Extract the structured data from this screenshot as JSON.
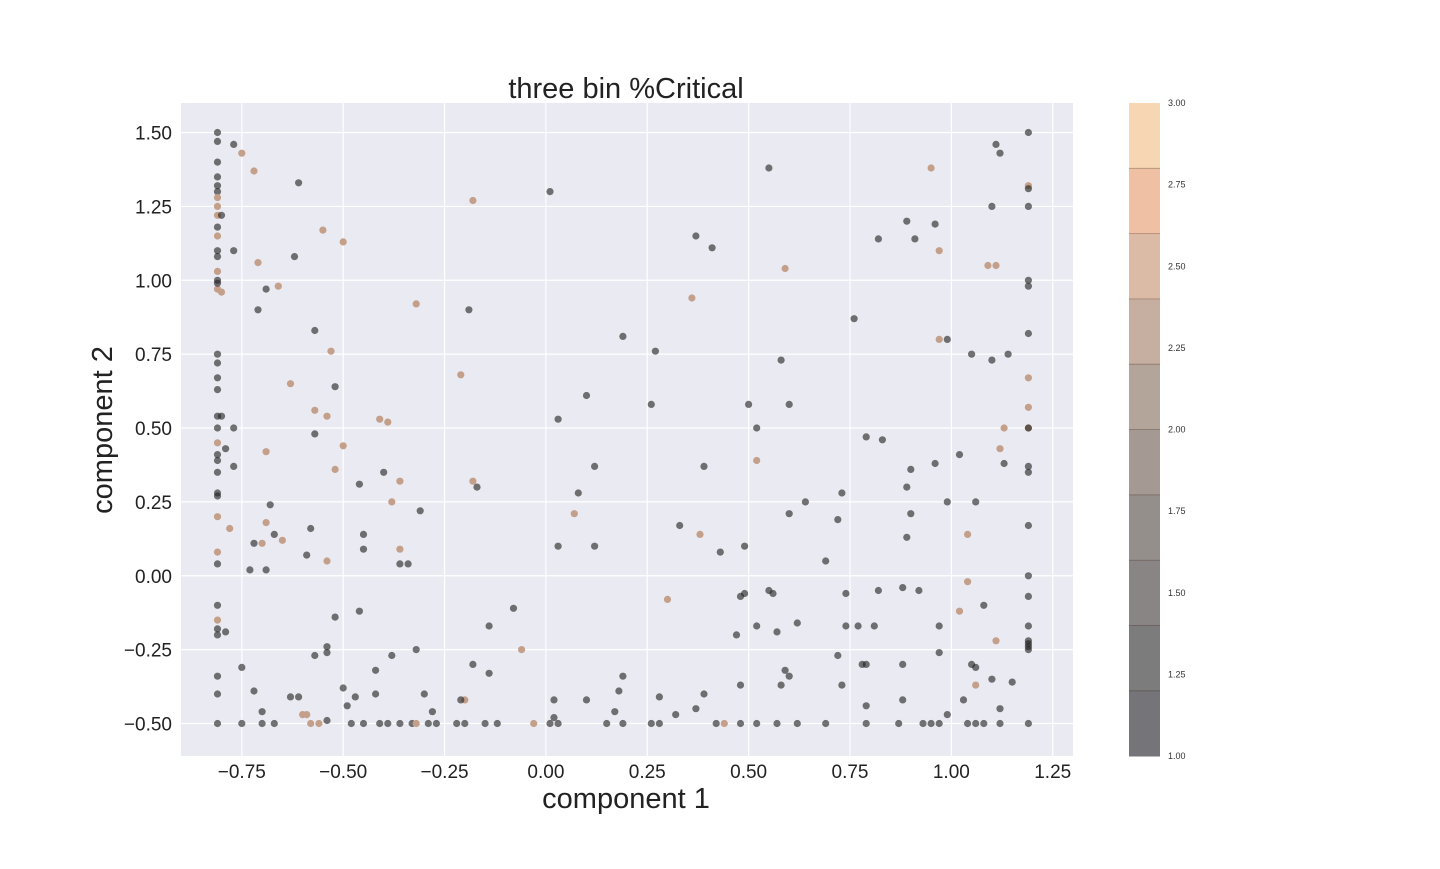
{
  "chart_data": {
    "type": "scatter",
    "title": "three bin %Critical",
    "xlabel": "component 1",
    "ylabel": "component 2",
    "xlim": [
      -0.9,
      1.3
    ],
    "ylim": [
      -0.61,
      1.6
    ],
    "grid": true,
    "xticks": [
      -0.75,
      -0.5,
      -0.25,
      0.0,
      0.25,
      0.5,
      0.75,
      1.0,
      1.25
    ],
    "xtick_labels": [
      "−0.75",
      "−0.50",
      "−0.25",
      "0.00",
      "0.25",
      "0.50",
      "0.75",
      "1.00",
      "1.25"
    ],
    "yticks": [
      -0.5,
      -0.25,
      0.0,
      0.25,
      0.5,
      0.75,
      1.0,
      1.25,
      1.5
    ],
    "ytick_labels": [
      "−0.50",
      "−0.25",
      "0.00",
      "0.25",
      "0.50",
      "0.75",
      "1.00",
      "1.25",
      "1.50"
    ],
    "colorbar": {
      "range": [
        1.0,
        3.0
      ],
      "ticks": [
        1.0,
        1.25,
        1.5,
        1.75,
        2.0,
        2.25,
        2.5,
        2.75,
        3.0
      ],
      "tick_labels": [
        "1.00",
        "1.25",
        "1.50",
        "1.75",
        "2.00",
        "2.25",
        "2.50",
        "2.75",
        "3.00"
      ],
      "colors": [
        "#2b2a31",
        "#383538",
        "#4a4442",
        "#5c534e",
        "#736459",
        "#8b7463",
        "#a8836d",
        "#c79674",
        "#e89e75",
        "#f2c08a"
      ]
    },
    "point_colors": {
      "low": "#6b6b6b",
      "high": "#c4a08a"
    },
    "points": [
      [
        -0.81,
        1.5,
        1
      ],
      [
        -0.81,
        1.47,
        1
      ],
      [
        -0.81,
        1.4,
        1
      ],
      [
        -0.81,
        1.35,
        1
      ],
      [
        -0.81,
        1.32,
        1
      ],
      [
        -0.81,
        1.3,
        1
      ],
      [
        -0.81,
        1.28,
        3
      ],
      [
        -0.81,
        1.25,
        3
      ],
      [
        -0.81,
        1.22,
        3
      ],
      [
        -0.81,
        1.18,
        1
      ],
      [
        -0.81,
        1.15,
        3
      ],
      [
        -0.81,
        1.1,
        1
      ],
      [
        -0.81,
        1.08,
        1
      ],
      [
        -0.81,
        1.03,
        3
      ],
      [
        -0.81,
        1.0,
        1
      ],
      [
        -0.81,
        0.97,
        3
      ],
      [
        -0.81,
        0.99,
        1
      ],
      [
        -0.81,
        0.75,
        1
      ],
      [
        -0.81,
        0.72,
        1
      ],
      [
        -0.81,
        0.67,
        1
      ],
      [
        -0.81,
        0.63,
        1
      ],
      [
        -0.81,
        0.54,
        1
      ],
      [
        -0.81,
        0.5,
        1
      ],
      [
        -0.81,
        0.45,
        3
      ],
      [
        -0.81,
        0.41,
        1
      ],
      [
        -0.81,
        0.39,
        1
      ],
      [
        -0.81,
        0.35,
        1
      ],
      [
        -0.81,
        0.28,
        1
      ],
      [
        -0.81,
        0.27,
        1
      ],
      [
        -0.81,
        0.2,
        3
      ],
      [
        -0.81,
        0.08,
        3
      ],
      [
        -0.81,
        0.04,
        1
      ],
      [
        -0.81,
        -0.1,
        1
      ],
      [
        -0.81,
        -0.15,
        3
      ],
      [
        -0.81,
        -0.18,
        1
      ],
      [
        -0.81,
        -0.2,
        1
      ],
      [
        -0.81,
        -0.34,
        1
      ],
      [
        -0.81,
        -0.4,
        1
      ],
      [
        -0.81,
        -0.5,
        1
      ],
      [
        -0.8,
        1.22,
        1
      ],
      [
        -0.8,
        0.96,
        3
      ],
      [
        -0.8,
        0.54,
        1
      ],
      [
        -0.79,
        0.43,
        1
      ],
      [
        -0.78,
        0.16,
        3
      ],
      [
        -0.79,
        -0.19,
        1
      ],
      [
        -0.77,
        1.46,
        1
      ],
      [
        -0.77,
        1.1,
        1
      ],
      [
        -0.77,
        0.5,
        1
      ],
      [
        -0.77,
        0.37,
        1
      ],
      [
        -0.75,
        1.43,
        3
      ],
      [
        -0.72,
        1.37,
        3
      ],
      [
        -0.71,
        1.06,
        3
      ],
      [
        -0.71,
        0.9,
        1
      ],
      [
        -0.69,
        0.97,
        1
      ],
      [
        -0.69,
        0.42,
        3
      ],
      [
        -0.68,
        0.24,
        1
      ],
      [
        -0.69,
        0.18,
        3
      ],
      [
        -0.7,
        0.11,
        3
      ],
      [
        -0.67,
        0.14,
        1
      ],
      [
        -0.72,
        0.11,
        1
      ],
      [
        -0.69,
        0.02,
        1
      ],
      [
        -0.73,
        0.02,
        1
      ],
      [
        -0.75,
        -0.31,
        1
      ],
      [
        -0.72,
        -0.39,
        1
      ],
      [
        -0.7,
        -0.46,
        1
      ],
      [
        -0.7,
        -0.5,
        1
      ],
      [
        -0.75,
        -0.5,
        1
      ],
      [
        -0.67,
        -0.5,
        1
      ],
      [
        -0.66,
        0.98,
        3
      ],
      [
        -0.65,
        0.12,
        3
      ],
      [
        -0.63,
        0.65,
        3
      ],
      [
        -0.62,
        1.08,
        1
      ],
      [
        -0.61,
        1.33,
        1
      ],
      [
        -0.59,
        0.07,
        1
      ],
      [
        -0.58,
        0.16,
        1
      ],
      [
        -0.57,
        0.48,
        1
      ],
      [
        -0.57,
        0.56,
        3
      ],
      [
        -0.57,
        0.83,
        1
      ],
      [
        -0.55,
        1.17,
        3
      ],
      [
        -0.54,
        0.54,
        3
      ],
      [
        -0.53,
        0.76,
        3
      ],
      [
        -0.52,
        0.64,
        1
      ],
      [
        -0.52,
        0.36,
        3
      ],
      [
        -0.5,
        0.44,
        3
      ],
      [
        -0.5,
        1.13,
        3
      ],
      [
        -0.54,
        0.05,
        3
      ],
      [
        -0.52,
        -0.14,
        1
      ],
      [
        -0.57,
        -0.27,
        1
      ],
      [
        -0.54,
        -0.24,
        1
      ],
      [
        -0.54,
        -0.26,
        1
      ],
      [
        -0.63,
        -0.41,
        1
      ],
      [
        -0.61,
        -0.41,
        1
      ],
      [
        -0.5,
        -0.38,
        1
      ],
      [
        -0.49,
        -0.44,
        1
      ],
      [
        -0.47,
        -0.41,
        1
      ],
      [
        -0.54,
        -0.49,
        1
      ],
      [
        -0.6,
        -0.47,
        3
      ],
      [
        -0.59,
        -0.47,
        3
      ],
      [
        -0.58,
        -0.5,
        3
      ],
      [
        -0.56,
        -0.5,
        3
      ],
      [
        -0.48,
        -0.5,
        1
      ],
      [
        -0.45,
        -0.5,
        1
      ],
      [
        -0.46,
        0.31,
        1
      ],
      [
        -0.45,
        0.14,
        1
      ],
      [
        -0.45,
        0.09,
        1
      ],
      [
        -0.46,
        -0.12,
        1
      ],
      [
        -0.42,
        -0.32,
        1
      ],
      [
        -0.42,
        -0.4,
        1
      ],
      [
        -0.41,
        -0.5,
        1
      ],
      [
        -0.39,
        -0.5,
        1
      ],
      [
        -0.38,
        -0.27,
        1
      ],
      [
        -0.41,
        0.53,
        3
      ],
      [
        -0.39,
        0.52,
        3
      ],
      [
        -0.4,
        0.35,
        1
      ],
      [
        -0.38,
        0.25,
        3
      ],
      [
        -0.36,
        0.32,
        3
      ],
      [
        -0.36,
        0.09,
        3
      ],
      [
        -0.36,
        0.04,
        1
      ],
      [
        -0.34,
        0.04,
        1
      ],
      [
        -0.32,
        0.92,
        3
      ],
      [
        -0.31,
        0.22,
        1
      ],
      [
        -0.32,
        -0.25,
        1
      ],
      [
        -0.3,
        -0.4,
        1
      ],
      [
        -0.28,
        -0.46,
        1
      ],
      [
        -0.36,
        -0.5,
        1
      ],
      [
        -0.33,
        -0.5,
        1
      ],
      [
        -0.32,
        -0.5,
        3
      ],
      [
        -0.29,
        -0.5,
        1
      ],
      [
        -0.27,
        -0.5,
        1
      ],
      [
        -0.22,
        -0.5,
        1
      ],
      [
        -0.21,
        0.68,
        3
      ],
      [
        -0.18,
        1.27,
        3
      ],
      [
        -0.19,
        0.9,
        1
      ],
      [
        -0.18,
        0.32,
        3
      ],
      [
        -0.17,
        0.3,
        1
      ],
      [
        -0.14,
        -0.17,
        1
      ],
      [
        -0.18,
        -0.3,
        1
      ],
      [
        -0.14,
        -0.33,
        1
      ],
      [
        -0.2,
        -0.42,
        3
      ],
      [
        -0.21,
        -0.42,
        1
      ],
      [
        -0.2,
        -0.5,
        1
      ],
      [
        -0.15,
        -0.5,
        1
      ],
      [
        -0.12,
        -0.5,
        1
      ],
      [
        -0.08,
        -0.11,
        1
      ],
      [
        -0.06,
        -0.25,
        3
      ],
      [
        -0.03,
        -0.5,
        3
      ],
      [
        0.01,
        -0.5,
        1
      ],
      [
        0.03,
        -0.5,
        1
      ],
      [
        0.02,
        -0.48,
        1
      ],
      [
        0.02,
        -0.42,
        1
      ],
      [
        0.01,
        1.3,
        1
      ],
      [
        0.03,
        0.53,
        1
      ],
      [
        0.03,
        0.1,
        1
      ],
      [
        0.07,
        0.21,
        3
      ],
      [
        0.08,
        0.28,
        1
      ],
      [
        0.1,
        0.61,
        1
      ],
      [
        0.12,
        0.37,
        1
      ],
      [
        0.12,
        0.1,
        1
      ],
      [
        0.1,
        -0.42,
        1
      ],
      [
        0.15,
        -0.5,
        1
      ],
      [
        0.17,
        -0.46,
        1
      ],
      [
        0.18,
        -0.39,
        1
      ],
      [
        0.19,
        -0.34,
        1
      ],
      [
        0.19,
        0.81,
        1
      ],
      [
        0.19,
        -0.5,
        1
      ],
      [
        0.26,
        0.58,
        1
      ],
      [
        0.27,
        0.76,
        1
      ],
      [
        0.3,
        -0.08,
        3
      ],
      [
        0.33,
        0.17,
        1
      ],
      [
        0.26,
        -0.5,
        1
      ],
      [
        0.28,
        -0.5,
        1
      ],
      [
        0.28,
        -0.41,
        1
      ],
      [
        0.32,
        -0.47,
        1
      ],
      [
        0.36,
        0.94,
        3
      ],
      [
        0.37,
        1.15,
        1
      ],
      [
        0.38,
        0.14,
        3
      ],
      [
        0.39,
        0.37,
        1
      ],
      [
        0.37,
        -0.45,
        1
      ],
      [
        0.39,
        -0.4,
        1
      ],
      [
        0.41,
        1.11,
        1
      ],
      [
        0.42,
        -0.5,
        1
      ],
      [
        0.44,
        -0.5,
        3
      ],
      [
        0.43,
        0.08,
        1
      ],
      [
        0.47,
        -0.2,
        1
      ],
      [
        0.48,
        -0.07,
        1
      ],
      [
        0.49,
        -0.06,
        1
      ],
      [
        0.48,
        -0.37,
        1
      ],
      [
        0.48,
        -0.5,
        1
      ],
      [
        0.49,
        0.1,
        1
      ],
      [
        0.5,
        0.58,
        1
      ],
      [
        0.52,
        0.5,
        1
      ],
      [
        0.52,
        0.39,
        3
      ],
      [
        0.52,
        -0.17,
        1
      ],
      [
        0.52,
        -0.5,
        1
      ],
      [
        0.55,
        1.38,
        1
      ],
      [
        0.55,
        -0.05,
        1
      ],
      [
        0.56,
        -0.06,
        1
      ],
      [
        0.57,
        -0.19,
        1
      ],
      [
        0.58,
        -0.37,
        1
      ],
      [
        0.57,
        -0.5,
        1
      ],
      [
        0.58,
        0.73,
        1
      ],
      [
        0.59,
        1.04,
        3
      ],
      [
        0.59,
        -0.32,
        1
      ],
      [
        0.6,
        -0.34,
        1
      ],
      [
        0.6,
        0.58,
        1
      ],
      [
        0.6,
        0.21,
        1
      ],
      [
        0.62,
        -0.5,
        1
      ],
      [
        0.62,
        -0.16,
        1
      ],
      [
        0.64,
        0.25,
        1
      ],
      [
        0.69,
        0.05,
        1
      ],
      [
        0.69,
        -0.5,
        1
      ],
      [
        0.72,
        0.19,
        1
      ],
      [
        0.73,
        0.28,
        1
      ],
      [
        0.74,
        -0.06,
        1
      ],
      [
        0.74,
        -0.17,
        1
      ],
      [
        0.72,
        -0.27,
        1
      ],
      [
        0.73,
        -0.37,
        1
      ],
      [
        0.76,
        0.87,
        1
      ],
      [
        0.77,
        -0.17,
        1
      ],
      [
        0.78,
        -0.3,
        1
      ],
      [
        0.79,
        -0.3,
        1
      ],
      [
        0.79,
        0.47,
        1
      ],
      [
        0.79,
        -0.44,
        1
      ],
      [
        0.79,
        -0.5,
        1
      ],
      [
        0.81,
        -0.17,
        1
      ],
      [
        0.82,
        -0.05,
        1
      ],
      [
        0.82,
        1.14,
        1
      ],
      [
        0.83,
        0.46,
        1
      ],
      [
        0.87,
        -0.5,
        1
      ],
      [
        0.88,
        -0.42,
        1
      ],
      [
        0.88,
        -0.3,
        1
      ],
      [
        0.88,
        -0.04,
        1
      ],
      [
        0.89,
        0.13,
        1
      ],
      [
        0.89,
        0.3,
        1
      ],
      [
        0.9,
        0.36,
        1
      ],
      [
        0.9,
        0.21,
        1
      ],
      [
        0.89,
        1.2,
        1
      ],
      [
        0.91,
        1.14,
        1
      ],
      [
        0.92,
        -0.05,
        1
      ],
      [
        0.93,
        -0.5,
        1
      ],
      [
        0.95,
        -0.5,
        1
      ],
      [
        0.96,
        1.19,
        1
      ],
      [
        0.95,
        1.38,
        3
      ],
      [
        0.97,
        1.1,
        3
      ],
      [
        0.96,
        0.38,
        1
      ],
      [
        0.97,
        -0.17,
        1
      ],
      [
        0.97,
        -0.26,
        1
      ],
      [
        0.97,
        -0.5,
        1
      ],
      [
        0.97,
        0.8,
        3
      ],
      [
        0.99,
        0.8,
        1
      ],
      [
        0.99,
        0.25,
        1
      ],
      [
        0.99,
        -0.47,
        1
      ],
      [
        1.02,
        0.41,
        1
      ],
      [
        1.02,
        -0.12,
        3
      ],
      [
        1.03,
        -0.42,
        1
      ],
      [
        1.04,
        -0.02,
        3
      ],
      [
        1.04,
        0.14,
        3
      ],
      [
        1.04,
        -0.5,
        1
      ],
      [
        1.05,
        0.75,
        1
      ],
      [
        1.05,
        -0.3,
        1
      ],
      [
        1.06,
        -0.31,
        1
      ],
      [
        1.06,
        -0.37,
        3
      ],
      [
        1.06,
        0.25,
        1
      ],
      [
        1.06,
        -0.5,
        1
      ],
      [
        1.08,
        -0.5,
        1
      ],
      [
        1.08,
        -0.1,
        1
      ],
      [
        1.09,
        1.05,
        3
      ],
      [
        1.1,
        -0.35,
        1
      ],
      [
        1.1,
        0.73,
        1
      ],
      [
        1.1,
        1.25,
        1
      ],
      [
        1.11,
        1.46,
        1
      ],
      [
        1.12,
        1.43,
        1
      ],
      [
        1.11,
        1.05,
        3
      ],
      [
        1.11,
        -0.22,
        3
      ],
      [
        1.12,
        0.43,
        3
      ],
      [
        1.12,
        -0.5,
        1
      ],
      [
        1.12,
        -0.45,
        1
      ],
      [
        1.13,
        0.5,
        3
      ],
      [
        1.13,
        0.38,
        1
      ],
      [
        1.14,
        0.75,
        1
      ],
      [
        1.15,
        -0.36,
        1
      ],
      [
        1.19,
        1.5,
        1
      ],
      [
        1.19,
        1.32,
        3
      ],
      [
        1.19,
        1.31,
        1
      ],
      [
        1.19,
        1.25,
        1
      ],
      [
        1.19,
        1.0,
        1
      ],
      [
        1.19,
        0.98,
        1
      ],
      [
        1.19,
        0.82,
        1
      ],
      [
        1.19,
        0.67,
        3
      ],
      [
        1.19,
        0.57,
        3
      ],
      [
        1.19,
        0.5,
        3
      ],
      [
        1.19,
        0.5,
        1
      ],
      [
        1.19,
        0.37,
        1
      ],
      [
        1.19,
        0.35,
        1
      ],
      [
        1.19,
        0.17,
        1
      ],
      [
        1.19,
        0.0,
        1
      ],
      [
        1.19,
        -0.07,
        1
      ],
      [
        1.19,
        -0.17,
        1
      ],
      [
        1.19,
        -0.22,
        1
      ],
      [
        1.19,
        -0.23,
        1
      ],
      [
        1.19,
        -0.24,
        1
      ],
      [
        1.19,
        -0.25,
        1
      ],
      [
        1.19,
        -0.5,
        1
      ]
    ]
  }
}
